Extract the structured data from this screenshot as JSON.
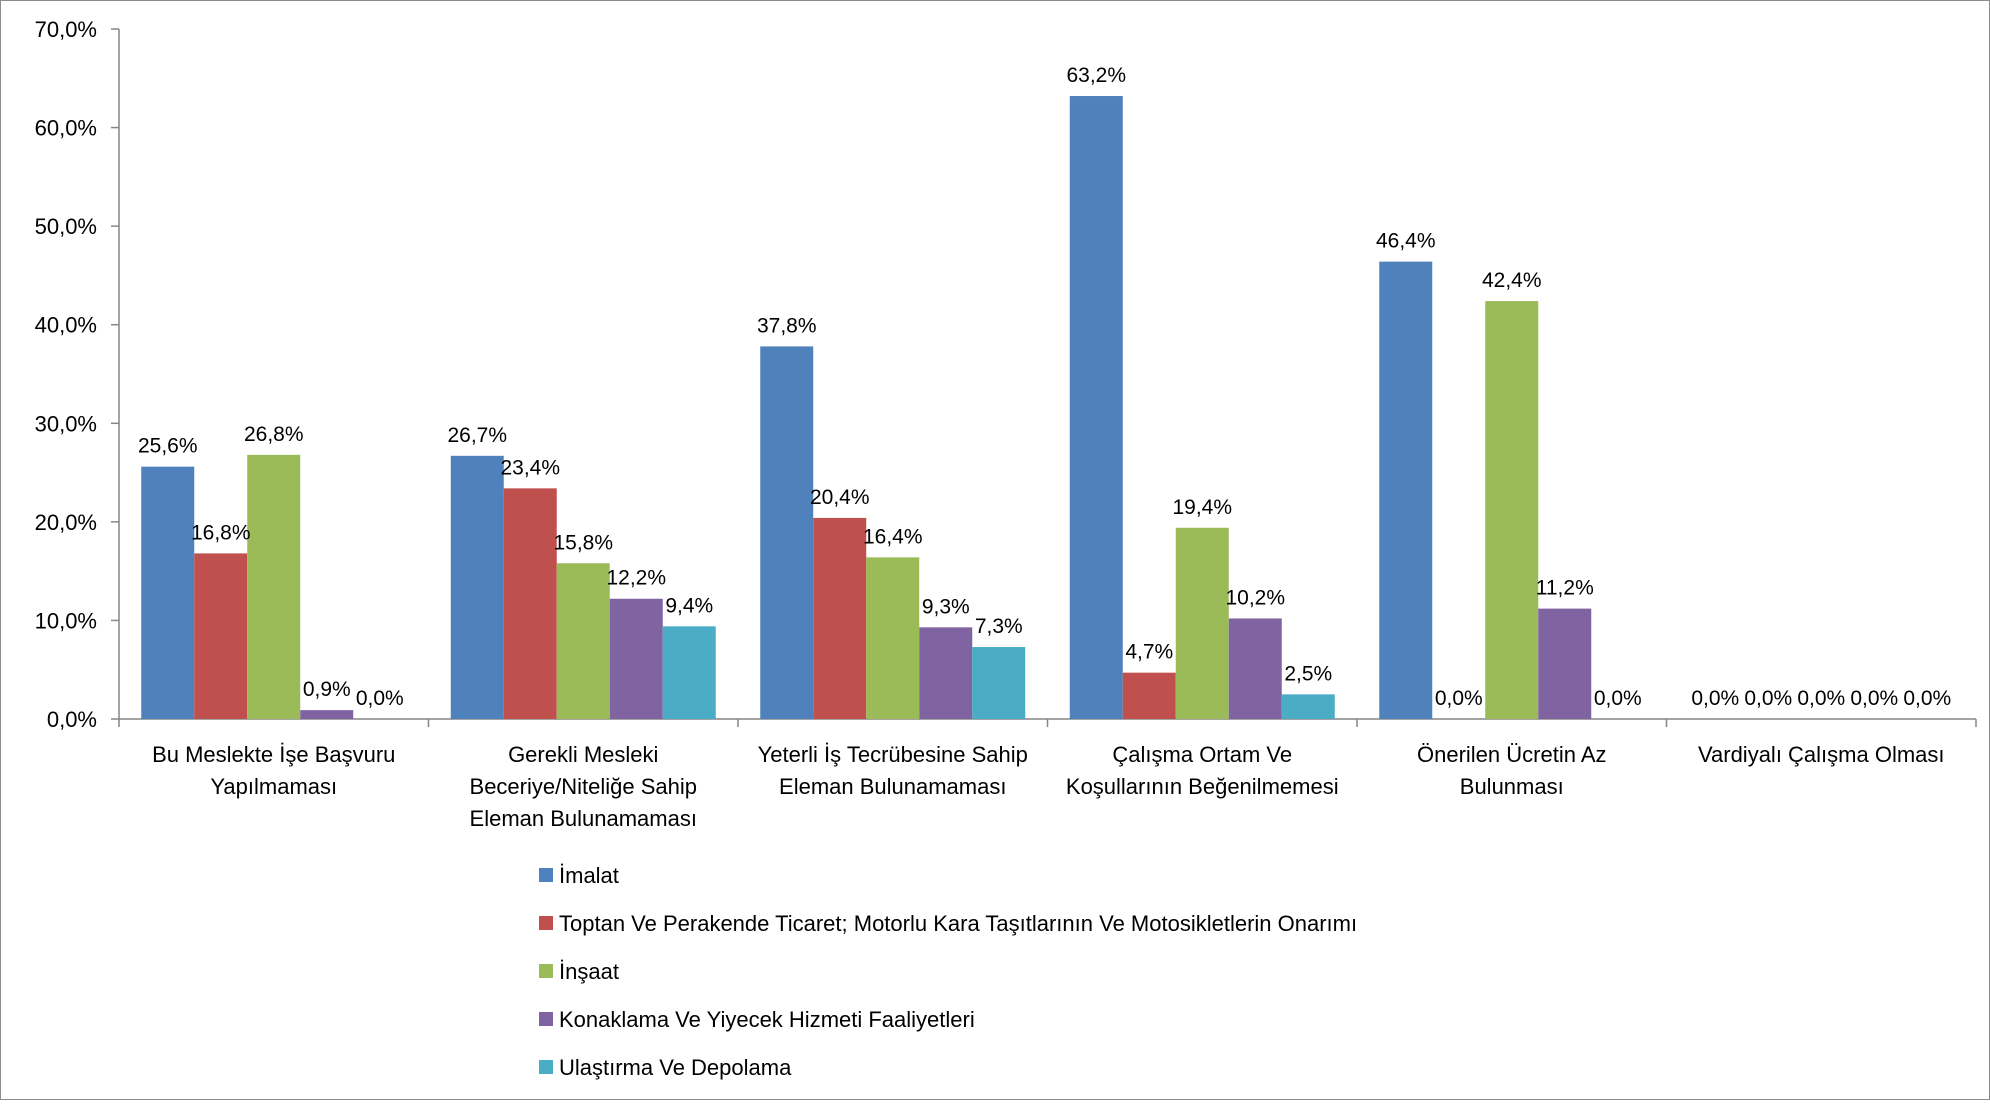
{
  "chart_data": {
    "type": "bar",
    "categories": [
      [
        "Bu Meslekte İşe Başvuru",
        "Yapılmaması"
      ],
      [
        "Gerekli Mesleki",
        "Beceriye/Niteliğe Sahip",
        "Eleman Bulunamaması"
      ],
      [
        "Yeterli İş Tecrübesine Sahip",
        "Eleman Bulunamaması"
      ],
      [
        "Çalışma Ortam Ve",
        "Koşullarının Beğenilmemesi"
      ],
      [
        "Önerilen Ücretin Az",
        "Bulunması"
      ],
      [
        "Vardiyalı Çalışma Olması"
      ]
    ],
    "series": [
      {
        "name": "İmalat",
        "color": "#4F81BD",
        "values": [
          25.6,
          26.7,
          37.8,
          63.2,
          46.4,
          0.0
        ],
        "labels": [
          "25,6%",
          "26,7%",
          "37,8%",
          "63,2%",
          "46,4%",
          "0,0%"
        ]
      },
      {
        "name": "Toptan Ve Perakende Ticaret; Motorlu Kara Taşıtlarının Ve Motosikletlerin Onarımı",
        "color": "#C0504D",
        "values": [
          16.8,
          23.4,
          20.4,
          4.7,
          0.0,
          0.0
        ],
        "labels": [
          "16,8%",
          "23,4%",
          "20,4%",
          "4,7%",
          "0,0%",
          "0,0%"
        ]
      },
      {
        "name": "İnşaat",
        "color": "#9BBB59",
        "values": [
          26.8,
          15.8,
          16.4,
          19.4,
          42.4,
          0.0
        ],
        "labels": [
          "26,8%",
          "15,8%",
          "16,4%",
          "19,4%",
          "42,4%",
          "0,0%"
        ]
      },
      {
        "name": "Konaklama Ve Yiyecek Hizmeti Faaliyetleri",
        "color": "#8064A2",
        "values": [
          0.9,
          12.2,
          9.3,
          10.2,
          11.2,
          0.0
        ],
        "labels": [
          "0,9%",
          "12,2%",
          "9,3%",
          "10,2%",
          "11,2%",
          "0,0%"
        ]
      },
      {
        "name": "Ulaştırma Ve Depolama",
        "color": "#4BACC6",
        "values": [
          0.0,
          9.4,
          7.3,
          2.5,
          0.0,
          0.0
        ],
        "labels": [
          "0,0%",
          "9,4%",
          "7,3%",
          "2,5%",
          "0,0%",
          "0,0%"
        ]
      }
    ],
    "yticks": [
      "0,0%",
      "10,0%",
      "20,0%",
      "30,0%",
      "40,0%",
      "50,0%",
      "60,0%",
      "70,0%"
    ],
    "ylim": [
      0,
      70
    ],
    "grid": false,
    "legend_position": "bottom"
  }
}
